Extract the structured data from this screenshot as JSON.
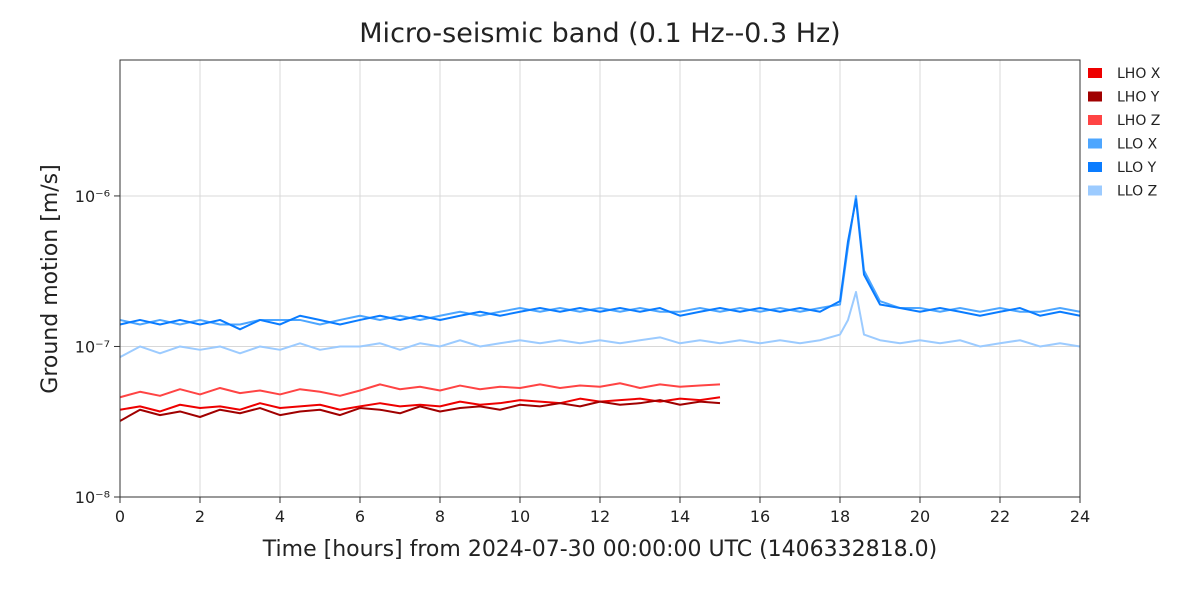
{
  "chart_data": {
    "type": "line",
    "title": "Micro-seismic band (0.1 Hz--0.3 Hz)",
    "x_label": "Time [hours] from 2024-07-30 00:00:00 UTC (1406332818.0)",
    "y_label": "Ground motion [m/s]",
    "log_y": true,
    "grid": true,
    "legend": "outside-upper-right",
    "xlim": [
      0,
      24
    ],
    "xticks": [
      0,
      2,
      4,
      6,
      8,
      10,
      12,
      14,
      16,
      18,
      20,
      22,
      24
    ],
    "ylim": [
      1e-08,
      8e-06
    ],
    "yticks": [
      {
        "value": 1e-08,
        "label": "10⁻⁸"
      },
      {
        "value": 1e-07,
        "label": "10⁻⁷"
      },
      {
        "value": 1e-06,
        "label": "10⁻⁶"
      }
    ],
    "x": [
      0,
      0.5,
      1,
      1.5,
      2,
      2.5,
      3,
      3.5,
      4,
      4.5,
      5,
      5.5,
      6,
      6.5,
      7,
      7.5,
      8,
      8.5,
      9,
      9.5,
      10,
      10.5,
      11,
      11.5,
      12,
      12.5,
      13,
      13.5,
      14,
      14.5,
      15,
      15.5,
      16,
      16.5,
      17,
      17.5,
      18,
      18.2,
      18.4,
      18.6,
      19,
      19.5,
      20,
      20.5,
      21,
      21.5,
      22,
      22.5,
      23,
      23.5,
      24
    ],
    "series": [
      {
        "name": "LHO X",
        "color": "#ee0000",
        "values": [
          3.8e-08,
          4e-08,
          3.7e-08,
          4.1e-08,
          3.9e-08,
          4e-08,
          3.8e-08,
          4.2e-08,
          3.9e-08,
          4e-08,
          4.1e-08,
          3.8e-08,
          4e-08,
          4.2e-08,
          4e-08,
          4.1e-08,
          4e-08,
          4.3e-08,
          4.1e-08,
          4.2e-08,
          4.4e-08,
          4.3e-08,
          4.2e-08,
          4.5e-08,
          4.3e-08,
          4.4e-08,
          4.5e-08,
          4.3e-08,
          4.5e-08,
          4.4e-08,
          4.6e-08,
          null,
          null,
          null,
          null,
          null,
          null,
          null,
          null,
          null,
          null,
          null,
          null,
          null,
          null,
          null,
          null,
          null,
          null,
          null,
          null
        ]
      },
      {
        "name": "LHO Y",
        "color": "#a00000",
        "values": [
          3.2e-08,
          3.8e-08,
          3.5e-08,
          3.7e-08,
          3.4e-08,
          3.8e-08,
          3.6e-08,
          3.9e-08,
          3.5e-08,
          3.7e-08,
          3.8e-08,
          3.5e-08,
          3.9e-08,
          3.8e-08,
          3.6e-08,
          4e-08,
          3.7e-08,
          3.9e-08,
          4e-08,
          3.8e-08,
          4.1e-08,
          4e-08,
          4.2e-08,
          4e-08,
          4.3e-08,
          4.1e-08,
          4.2e-08,
          4.4e-08,
          4.1e-08,
          4.3e-08,
          4.2e-08,
          null,
          null,
          null,
          null,
          null,
          null,
          null,
          null,
          null,
          null,
          null,
          null,
          null,
          null,
          null,
          null,
          null,
          null,
          null,
          null
        ]
      },
      {
        "name": "LHO Z",
        "color": "#ff4444",
        "values": [
          4.6e-08,
          5e-08,
          4.7e-08,
          5.2e-08,
          4.8e-08,
          5.3e-08,
          4.9e-08,
          5.1e-08,
          4.8e-08,
          5.2e-08,
          5e-08,
          4.7e-08,
          5.1e-08,
          5.6e-08,
          5.2e-08,
          5.4e-08,
          5.1e-08,
          5.5e-08,
          5.2e-08,
          5.4e-08,
          5.3e-08,
          5.6e-08,
          5.3e-08,
          5.5e-08,
          5.4e-08,
          5.7e-08,
          5.3e-08,
          5.6e-08,
          5.4e-08,
          5.5e-08,
          5.6e-08,
          null,
          null,
          null,
          null,
          null,
          null,
          null,
          null,
          null,
          null,
          null,
          null,
          null,
          null,
          null,
          null,
          null,
          null,
          null,
          null
        ]
      },
      {
        "name": "LLO X",
        "color": "#4da6ff",
        "values": [
          1.5e-07,
          1.4e-07,
          1.5e-07,
          1.4e-07,
          1.5e-07,
          1.4e-07,
          1.4e-07,
          1.5e-07,
          1.5e-07,
          1.5e-07,
          1.4e-07,
          1.5e-07,
          1.6e-07,
          1.5e-07,
          1.6e-07,
          1.5e-07,
          1.6e-07,
          1.7e-07,
          1.6e-07,
          1.7e-07,
          1.8e-07,
          1.7e-07,
          1.8e-07,
          1.7e-07,
          1.8e-07,
          1.7e-07,
          1.8e-07,
          1.7e-07,
          1.7e-07,
          1.8e-07,
          1.7e-07,
          1.8e-07,
          1.7e-07,
          1.8e-07,
          1.7e-07,
          1.8e-07,
          1.9e-07,
          4.6e-07,
          1e-06,
          3.2e-07,
          2e-07,
          1.8e-07,
          1.8e-07,
          1.7e-07,
          1.8e-07,
          1.7e-07,
          1.8e-07,
          1.7e-07,
          1.7e-07,
          1.8e-07,
          1.7e-07
        ]
      },
      {
        "name": "LLO Y",
        "color": "#0a7cff",
        "values": [
          1.4e-07,
          1.5e-07,
          1.4e-07,
          1.5e-07,
          1.4e-07,
          1.5e-07,
          1.3e-07,
          1.5e-07,
          1.4e-07,
          1.6e-07,
          1.5e-07,
          1.4e-07,
          1.5e-07,
          1.6e-07,
          1.5e-07,
          1.6e-07,
          1.5e-07,
          1.6e-07,
          1.7e-07,
          1.6e-07,
          1.7e-07,
          1.8e-07,
          1.7e-07,
          1.8e-07,
          1.7e-07,
          1.8e-07,
          1.7e-07,
          1.8e-07,
          1.6e-07,
          1.7e-07,
          1.8e-07,
          1.7e-07,
          1.8e-07,
          1.7e-07,
          1.8e-07,
          1.7e-07,
          2e-07,
          5e-07,
          9.5e-07,
          3e-07,
          1.9e-07,
          1.8e-07,
          1.7e-07,
          1.8e-07,
          1.7e-07,
          1.6e-07,
          1.7e-07,
          1.8e-07,
          1.6e-07,
          1.7e-07,
          1.6e-07
        ]
      },
      {
        "name": "LLO Z",
        "color": "#9ccbff",
        "values": [
          8.5e-08,
          1e-07,
          9e-08,
          1e-07,
          9.5e-08,
          1e-07,
          9e-08,
          1e-07,
          9.5e-08,
          1.05e-07,
          9.5e-08,
          1e-07,
          1e-07,
          1.05e-07,
          9.5e-08,
          1.05e-07,
          1e-07,
          1.1e-07,
          1e-07,
          1.05e-07,
          1.1e-07,
          1.05e-07,
          1.1e-07,
          1.05e-07,
          1.1e-07,
          1.05e-07,
          1.1e-07,
          1.15e-07,
          1.05e-07,
          1.1e-07,
          1.05e-07,
          1.1e-07,
          1.05e-07,
          1.1e-07,
          1.05e-07,
          1.1e-07,
          1.2e-07,
          1.5e-07,
          2.3e-07,
          1.2e-07,
          1.1e-07,
          1.05e-07,
          1.1e-07,
          1.05e-07,
          1.1e-07,
          1e-07,
          1.05e-07,
          1.1e-07,
          1e-07,
          1.05e-07,
          1e-07
        ]
      }
    ]
  }
}
